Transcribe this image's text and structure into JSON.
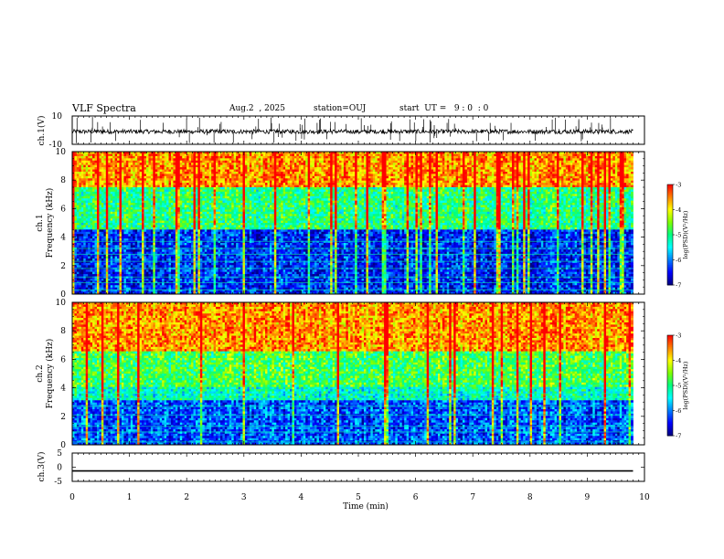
{
  "header": {
    "title": "VLF Spectra",
    "date": "Aug.2  , 2025",
    "station": "station=OUJ",
    "start": "start  UT =   9 : 0  : 0"
  },
  "chart_data": [
    {
      "type": "line",
      "name": "ch1-waveform",
      "ylabel": "ch.1(V)",
      "ylim": [
        -10,
        10
      ],
      "y_ticklabels": [
        "10",
        "-10"
      ],
      "xlim": [
        0,
        10
      ],
      "summary": {
        "baseline": -1,
        "noise_amplitude": 1.5,
        "spike_max": 9.5,
        "spike_min": -9.5
      }
    },
    {
      "type": "heatmap",
      "name": "ch1-spectrogram",
      "ylabel": "ch.1\nFrequency (kHz)",
      "ylim": [
        0,
        10
      ],
      "y_ticklabels": [
        "0",
        "2",
        "4",
        "6",
        "8",
        "10"
      ],
      "xlim": [
        0,
        9.8
      ],
      "colorbar": {
        "label": "log(PSD)(V²/Hz)",
        "range": [
          -7,
          -3
        ],
        "ticklabels": [
          "-3",
          "-4",
          "-5",
          "-6",
          "-7"
        ]
      },
      "bands_kHz": [
        {
          "from": 0,
          "to": 4.5,
          "level": -6.4
        },
        {
          "from": 4.5,
          "to": 7.5,
          "level": -5.0
        },
        {
          "from": 7.5,
          "to": 10,
          "level": -3.6
        }
      ],
      "horizontal_lines_kHz": [
        0.3,
        0.8,
        1.2,
        1.8,
        2.3,
        2.8,
        3.2,
        3.7
      ]
    },
    {
      "type": "heatmap",
      "name": "ch2-spectrogram",
      "ylabel": "ch.2\nFrequency (kHz)",
      "ylim": [
        0,
        10
      ],
      "y_ticklabels": [
        "0",
        "2",
        "4",
        "6",
        "8",
        "10"
      ],
      "xlim": [
        0,
        9.8
      ],
      "colorbar": {
        "label": "log(PSD)(V²/Hz)",
        "range": [
          -7,
          -3
        ],
        "ticklabels": [
          "-3",
          "-4",
          "-5",
          "-6",
          "-7"
        ]
      },
      "bands_kHz": [
        {
          "from": 0,
          "to": 3.2,
          "level": -6.2
        },
        {
          "from": 3.2,
          "to": 4.0,
          "level": -5.3
        },
        {
          "from": 4.0,
          "to": 6.5,
          "level": -4.8
        },
        {
          "from": 6.5,
          "to": 10,
          "level": -3.6
        }
      ],
      "horizontal_lines_kHz": [
        0.2,
        0.9,
        1.3,
        2.1,
        2.7,
        3.3,
        3.6
      ]
    },
    {
      "type": "line",
      "name": "ch3-waveform",
      "ylabel": "ch.3(V)",
      "ylim": [
        -5,
        5
      ],
      "y_ticklabels": [
        "5",
        "0",
        "-5"
      ],
      "xlim": [
        0,
        10
      ],
      "summary": {
        "baseline": -1.3
      }
    }
  ],
  "xaxis": {
    "label": "Time (min)",
    "ticklabels": [
      "0",
      "1",
      "2",
      "3",
      "4",
      "5",
      "6",
      "7",
      "8",
      "9",
      "10"
    ],
    "xlim": [
      0,
      10
    ]
  },
  "colors": {
    "ink": "#000000",
    "colormap": [
      "#000080",
      "#0000ff",
      "#0080ff",
      "#00ffff",
      "#00ff80",
      "#80ff00",
      "#ffff00",
      "#ff8000",
      "#ff0000"
    ]
  }
}
